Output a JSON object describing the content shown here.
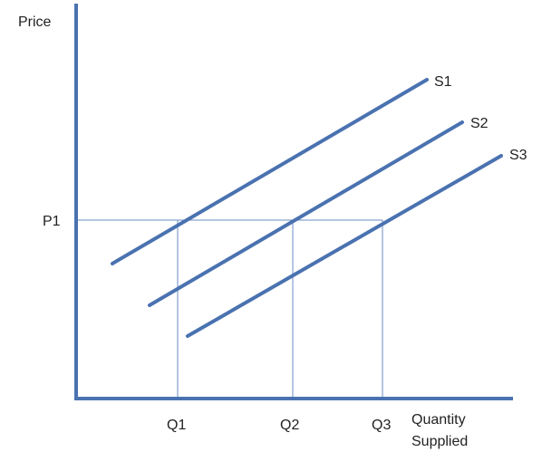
{
  "y_axis_label": "Price",
  "x_axis_label_line1": "Quantity",
  "x_axis_label_line2": "Supplied",
  "price_label": "P1",
  "quantity_labels": [
    "Q1",
    "Q2",
    "Q3"
  ],
  "supply_curves": [
    {
      "label": "S1"
    },
    {
      "label": "S2"
    },
    {
      "label": "S3"
    }
  ],
  "colors": {
    "axis": "#4a72b0",
    "curve": "#4a72b0",
    "guide": "#6b8ec4",
    "text": "#222222"
  }
}
